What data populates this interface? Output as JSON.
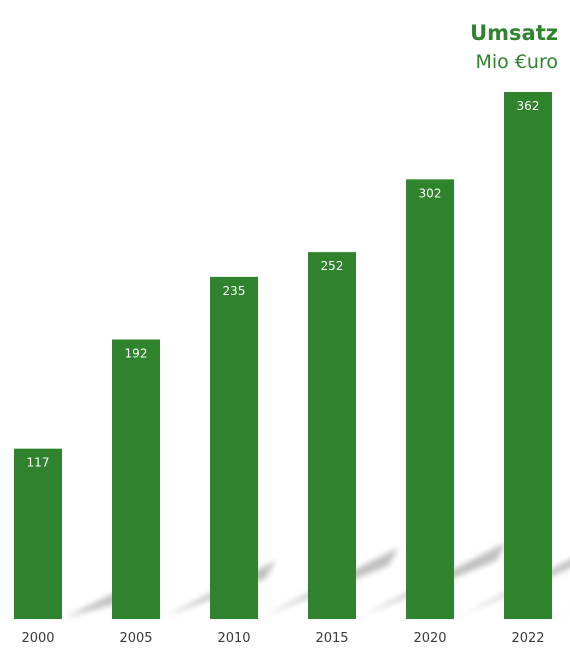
{
  "chart_data": {
    "type": "bar",
    "title": "Umsatz",
    "subtitle": "Mio €uro",
    "categories": [
      "2000",
      "2005",
      "2010",
      "2015",
      "2020",
      "2022"
    ],
    "values": [
      117,
      192,
      235,
      252,
      302,
      362
    ],
    "xlabel": "",
    "ylabel": "",
    "ylim": [
      0,
      362
    ],
    "grid": false,
    "legend": "none",
    "colors": {
      "bar": "#2e832c",
      "title": "#2e832c",
      "label": "#ffffff",
      "shadow": "#8a8a8a"
    }
  }
}
